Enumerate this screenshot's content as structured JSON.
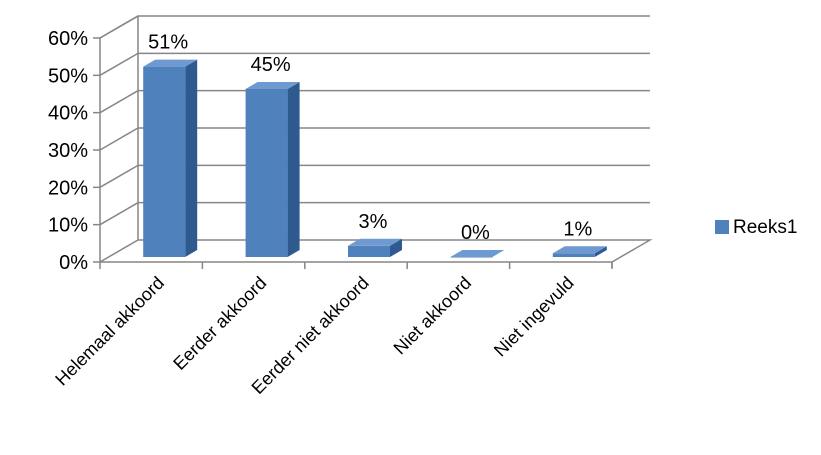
{
  "chart_data": {
    "type": "bar",
    "style": "3d-column",
    "categories": [
      "Helemaal akkoord",
      "Eerder akkoord",
      "Eerder niet akkoord",
      "Niet akkoord",
      "Niet ingevuld"
    ],
    "series": [
      {
        "name": "Reeks1",
        "values": [
          0.51,
          0.45,
          0.03,
          0.0,
          0.01
        ],
        "data_labels": [
          "51%",
          "45%",
          "3%",
          "0%",
          "1%"
        ]
      }
    ],
    "y_ticks": [
      "0%",
      "10%",
      "20%",
      "30%",
      "40%",
      "50%",
      "60%"
    ],
    "ylim": [
      0,
      0.6
    ],
    "grid": true,
    "legend": "right",
    "colors": {
      "bar_front": "#4F81BD",
      "bar_side": "#2E5A8F",
      "bar_top": "#6F9AD1",
      "grid": "#868686",
      "walls": "#868686"
    }
  }
}
